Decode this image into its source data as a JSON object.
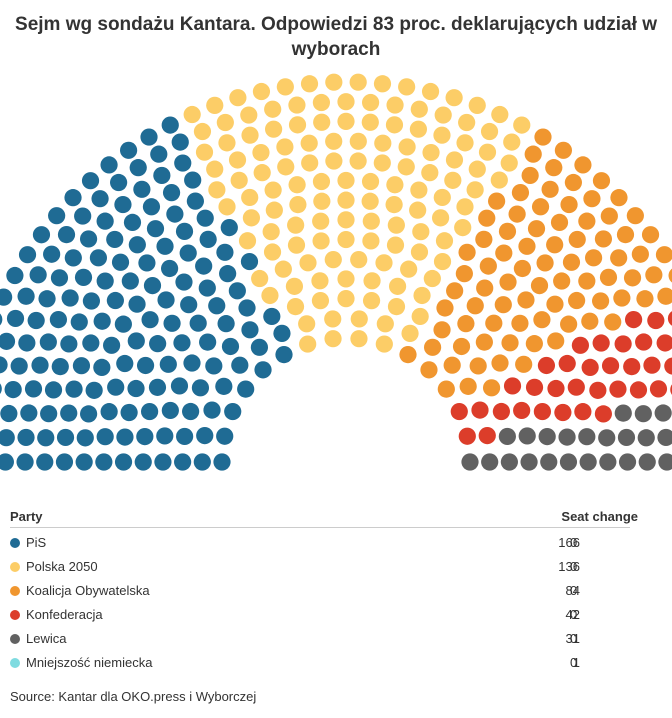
{
  "title": "Sejm wg sondażu Kantara. Odpowiedzi 83 proc. deklarujących udział w wyborach",
  "table": {
    "party_header": "Party",
    "seat_change_header": "Seat change"
  },
  "source": "Source: Kantar dla OKO.press i Wyborczej",
  "chart_data": {
    "type": "parliament",
    "title": "Sejm wg sondażu Kantara. Odpowiedzi 83 proc. deklarujących udział w wyborach",
    "total_seats": 460,
    "series": [
      {
        "name": "PiS",
        "seats": 166,
        "seat_change": 0,
        "color": "#1f6b94"
      },
      {
        "name": "Polska 2050",
        "seats": 136,
        "seat_change": 0,
        "color": "#fccd67"
      },
      {
        "name": "Koalicja Obywatelska",
        "seats": 84,
        "seat_change": 0,
        "color": "#f0962f"
      },
      {
        "name": "Konfederacja",
        "seats": 42,
        "seat_change": 0,
        "color": "#dc3d2a"
      },
      {
        "name": "Lewica",
        "seats": 31,
        "seat_change": 0,
        "color": "#616161"
      },
      {
        "name": "Mniejszość niemiecka",
        "seats": 1,
        "seat_change": 0,
        "color": "#7fdbe0"
      }
    ]
  }
}
